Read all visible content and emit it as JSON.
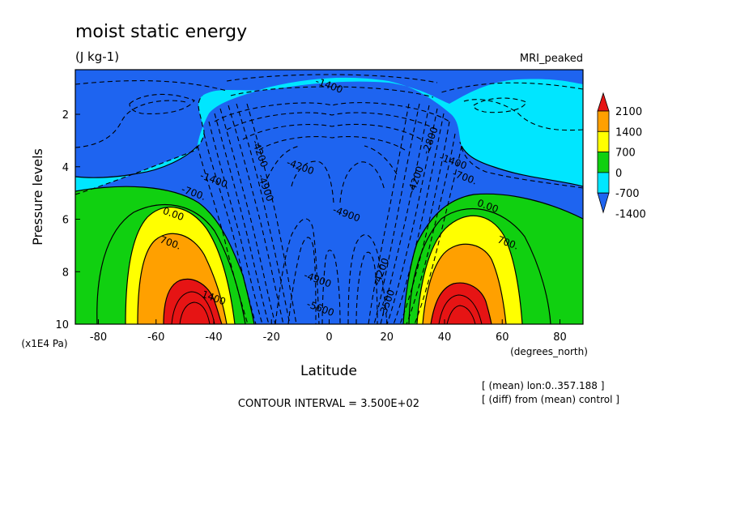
{
  "chart_data": {
    "type": "contour",
    "title": "moist static energy",
    "units": "(J kg-1)",
    "dataset": "MRI_peaked",
    "xlabel": "Latitude",
    "x_units": "(degrees_north)",
    "ylabel": "Pressure levels",
    "y_units": "(x1E4 Pa)",
    "xlim": [
      -88,
      88
    ],
    "ylim": [
      10,
      0.3
    ],
    "x_ticks": [
      -80,
      -60,
      -40,
      -20,
      0,
      20,
      40,
      60,
      80
    ],
    "y_ticks": [
      2,
      4,
      6,
      8,
      10
    ],
    "contour_interval_text": "CONTOUR INTERVAL = 3.500E+02",
    "notes": [
      "[ (mean) lon:0..357.188 ]",
      "[ (diff) from (mean) control ]"
    ],
    "colorbar": {
      "labels": [
        "2100",
        "1400",
        "700",
        "0",
        "-700",
        "-1400"
      ],
      "levels": [
        -1400,
        -700,
        0,
        700,
        1400,
        2100
      ],
      "colors": [
        "#1e64f0",
        "#00e6ff",
        "#10d010",
        "#ffff00",
        "#ffa000",
        "#e61414"
      ]
    },
    "contour_labels": [
      {
        "text": "-1400",
        "lat": 0,
        "p": 0.9
      },
      {
        "text": "-4200",
        "lat": -24,
        "p": 3.5
      },
      {
        "text": "-4900",
        "lat": -22,
        "p": 4.8
      },
      {
        "text": "-4200",
        "lat": -10,
        "p": 4.0
      },
      {
        "text": "-4900",
        "lat": 6,
        "p": 5.8
      },
      {
        "text": "-4200",
        "lat": 18,
        "p": 8.0
      },
      {
        "text": "-3500",
        "lat": 20,
        "p": 9.2
      },
      {
        "text": "-4900",
        "lat": -4,
        "p": 8.3
      },
      {
        "text": "-5600",
        "lat": -3,
        "p": 9.4
      },
      {
        "text": "-2800",
        "lat": 35,
        "p": 3.0
      },
      {
        "text": "-4200",
        "lat": 30,
        "p": 4.5
      },
      {
        "text": "-1400",
        "lat": 43,
        "p": 3.8
      },
      {
        "text": "-1400",
        "lat": -40,
        "p": 4.5
      },
      {
        "text": "-700.",
        "lat": -47,
        "p": 5.0
      },
      {
        "text": "-700.",
        "lat": 47,
        "p": 4.4
      },
      {
        "text": "0.00",
        "lat": -54,
        "p": 5.8
      },
      {
        "text": "0.00",
        "lat": 55,
        "p": 5.5
      },
      {
        "text": "700.",
        "lat": -55,
        "p": 6.9
      },
      {
        "text": "700.",
        "lat": 62,
        "p": 6.9
      },
      {
        "text": "1400",
        "lat": -40,
        "p": 9.0
      }
    ]
  }
}
